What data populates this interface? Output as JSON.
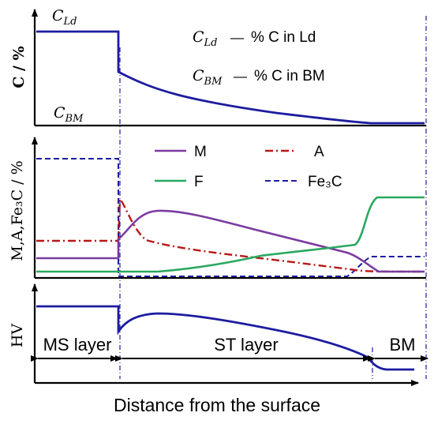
{
  "colors": {
    "blue": "#1c1ca0",
    "purple": "#7a3ba0",
    "red": "#b81818",
    "green": "#2aa860",
    "navy": "#1c1ca0",
    "axis": "#000000"
  },
  "xlabel": "Distance from the surface",
  "panel1": {
    "ylabel": "C / %",
    "cld_label": "C",
    "cld_sub": "Ld",
    "cbm_label": "C",
    "cbm_sub": "BM",
    "legend": [
      {
        "sym": "C",
        "sub": "Ld",
        "dash": "—",
        "text": "% C in Ld"
      },
      {
        "sym": "C",
        "sub": "BM",
        "dash": "—",
        "text": "% C in BM"
      }
    ]
  },
  "panel2": {
    "ylabel": "M,A,Fe₃C / %",
    "legend": [
      {
        "label": "M",
        "color": "purple",
        "style": "solid"
      },
      {
        "label": "A",
        "color": "red",
        "style": "dashdot"
      },
      {
        "label": "F",
        "color": "green",
        "style": "solid"
      },
      {
        "label": "Fe₃C",
        "color": "navy",
        "style": "dashed"
      }
    ]
  },
  "panel3": {
    "ylabel": "HV",
    "regions": [
      {
        "label": "MS layer"
      },
      {
        "label": "ST layer"
      },
      {
        "label": "BM"
      }
    ]
  }
}
